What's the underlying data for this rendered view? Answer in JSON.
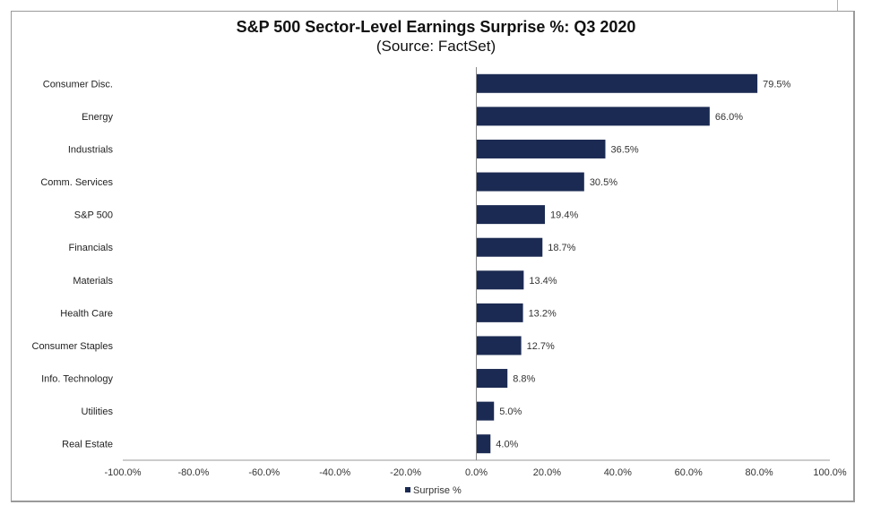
{
  "chart_data": {
    "type": "bar",
    "orientation": "horizontal",
    "title": "S&P 500 Sector-Level Earnings Surprise %: Q3 2020",
    "subtitle": "(Source: FactSet)",
    "xlabel": "",
    "ylabel": "",
    "xlim": [
      -100,
      100
    ],
    "x_ticks": [
      -100,
      -80,
      -60,
      -40,
      -20,
      0,
      20,
      40,
      60,
      80,
      100
    ],
    "x_tick_labels": [
      "-100.0%",
      "-80.0%",
      "-60.0%",
      "-40.0%",
      "-20.0%",
      "0.0%",
      "20.0%",
      "40.0%",
      "60.0%",
      "80.0%",
      "100.0%"
    ],
    "grid": false,
    "legend": {
      "position": "bottom",
      "entries": [
        "Surprise %"
      ]
    },
    "categories": [
      "Consumer Disc.",
      "Energy",
      "Industrials",
      "Comm. Services",
      "S&P 500",
      "Financials",
      "Materials",
      "Health Care",
      "Consumer Staples",
      "Info. Technology",
      "Utilities",
      "Real Estate"
    ],
    "series": [
      {
        "name": "Surprise %",
        "color": "#1b2a52",
        "values": [
          79.5,
          66.0,
          36.5,
          30.5,
          19.4,
          18.7,
          13.4,
          13.2,
          12.7,
          8.8,
          5.0,
          4.0
        ],
        "data_labels": [
          "79.5%",
          "66.0%",
          "36.5%",
          "30.5%",
          "19.4%",
          "18.7%",
          "13.4%",
          "13.2%",
          "12.7%",
          "8.8%",
          "5.0%",
          "4.0%"
        ]
      }
    ]
  }
}
